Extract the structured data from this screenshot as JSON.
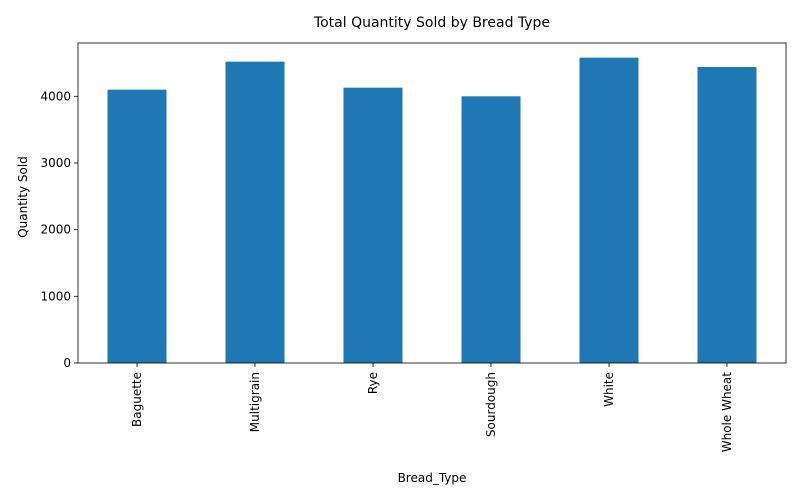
{
  "chart_data": {
    "type": "bar",
    "title": "Total Quantity Sold by Bread Type",
    "xlabel": "Bread_Type",
    "ylabel": "Quantity Sold",
    "categories": [
      "Baguette",
      "Multigrain",
      "Rye",
      "Sourdough",
      "White",
      "Whole Wheat"
    ],
    "values": [
      4100,
      4520,
      4130,
      4000,
      4580,
      4440
    ],
    "ylim": [
      0,
      4800
    ],
    "yticks": [
      0,
      1000,
      2000,
      3000,
      4000
    ],
    "grid": false,
    "bar_color": "#1f77b4"
  }
}
